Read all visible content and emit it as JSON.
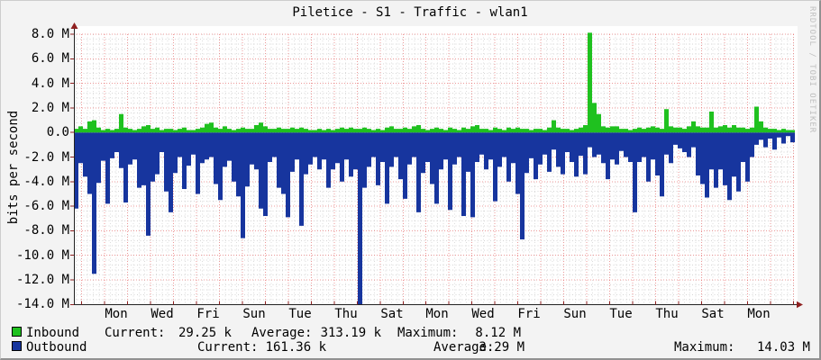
{
  "title": "Piletice - S1 - Traffic - wlan1",
  "y_axis_label": "bits per second",
  "watermark": "RRDTOOL / TOBI OETIKER",
  "colors": {
    "inbound": "#1FC11F",
    "outbound": "#17359E",
    "grid_major": "#E05555",
    "grid_minor": "#B4B4B4",
    "axis": "#222222",
    "arrow": "#8F2020",
    "canvas": "#FFFFFF",
    "frame_bg": "#F3F3F3",
    "watermark_color": "#BFBFBF",
    "text": "#000000"
  },
  "legend": {
    "inbound": {
      "label": "Inbound",
      "current_label": "Current:",
      "current": "29.25 k",
      "average_label": "Average:",
      "average": "313.19 k",
      "maximum_label": "Maximum:",
      "maximum": "8.12 M"
    },
    "outbound": {
      "label": "Outbound",
      "current_label": "Current:",
      "current": "161.36 k",
      "average_label": "Average:",
      "average": "3.29 M",
      "maximum_label": "Maximum:",
      "maximum": "14.03 M"
    }
  },
  "chart_data": {
    "type": "area",
    "title": "Piletice - S1 - Traffic - wlan1",
    "xlabel": "",
    "ylabel": "bits per second",
    "unit": "M = megabits per second; outbound traffic plotted as negative",
    "ylim_m": [
      -14,
      8
    ],
    "y_ticks_m": [
      8,
      6,
      4,
      2,
      0,
      -2,
      -4,
      -6,
      -8,
      -10,
      -12,
      -14
    ],
    "y_tick_labels": [
      "8.0 M",
      "6.0 M",
      "4.0 M",
      "2.0 M",
      "0.0",
      "-2.0 M",
      "-4.0 M",
      "-6.0 M",
      "-8.0 M",
      "-10.0 M",
      "-12.0 M",
      "-14.0 M"
    ],
    "x_tick_labels": [
      "Mon",
      "Wed",
      "Fri",
      "Sun",
      "Tue",
      "Thu",
      "Sat",
      "Mon",
      "Wed",
      "Fri",
      "Sun",
      "Tue",
      "Thu",
      "Sat",
      "Mon"
    ],
    "x_axis_note": "approx. 31 days of data, day labels every 2 days",
    "grid": true,
    "legend_position": "bottom-left",
    "samples_per_series": 160,
    "series": [
      {
        "name": "Inbound",
        "direction": "positive",
        "color": "#1FC11F",
        "values_m": [
          0.3,
          0.5,
          0.3,
          0.9,
          1.0,
          0.4,
          0.2,
          0.3,
          0.2,
          0.3,
          1.5,
          0.4,
          0.3,
          0.2,
          0.3,
          0.5,
          0.6,
          0.3,
          0.4,
          0.2,
          0.3,
          0.3,
          0.2,
          0.3,
          0.4,
          0.2,
          0.2,
          0.3,
          0.4,
          0.7,
          0.8,
          0.4,
          0.3,
          0.5,
          0.3,
          0.2,
          0.3,
          0.4,
          0.3,
          0.3,
          0.6,
          0.8,
          0.5,
          0.3,
          0.3,
          0.4,
          0.3,
          0.3,
          0.4,
          0.3,
          0.4,
          0.3,
          0.2,
          0.2,
          0.3,
          0.2,
          0.3,
          0.2,
          0.3,
          0.4,
          0.3,
          0.4,
          0.3,
          0.3,
          0.4,
          0.3,
          0.2,
          0.3,
          0.2,
          0.4,
          0.5,
          0.3,
          0.3,
          0.4,
          0.3,
          0.5,
          0.6,
          0.3,
          0.2,
          0.3,
          0.4,
          0.3,
          0.2,
          0.4,
          0.3,
          0.2,
          0.4,
          0.3,
          0.5,
          0.6,
          0.3,
          0.3,
          0.2,
          0.4,
          0.3,
          0.2,
          0.4,
          0.3,
          0.4,
          0.3,
          0.3,
          0.2,
          0.3,
          0.3,
          0.2,
          0.4,
          1.0,
          0.4,
          0.3,
          0.3,
          0.2,
          0.3,
          0.4,
          0.6,
          8.12,
          2.4,
          1.5,
          0.5,
          0.4,
          0.5,
          0.5,
          0.3,
          0.3,
          0.2,
          0.3,
          0.4,
          0.3,
          0.4,
          0.5,
          0.4,
          0.3,
          1.9,
          0.5,
          0.4,
          0.4,
          0.3,
          0.5,
          0.9,
          0.5,
          0.4,
          0.4,
          1.7,
          0.4,
          0.5,
          0.6,
          0.4,
          0.6,
          0.4,
          0.4,
          0.3,
          0.4,
          2.1,
          0.9,
          0.4,
          0.3,
          0.3,
          0.2,
          0.3,
          0.2,
          0.2
        ]
      },
      {
        "name": "Outbound",
        "direction": "negative",
        "color": "#17359E",
        "values_m": [
          -6.2,
          -2.5,
          -3.6,
          -5.0,
          -11.5,
          -4.1,
          -2.3,
          -5.8,
          -2.1,
          -1.6,
          -2.9,
          -5.7,
          -2.6,
          -2.2,
          -4.5,
          -4.3,
          -8.4,
          -4.0,
          -3.4,
          -1.6,
          -4.8,
          -6.5,
          -3.3,
          -2.0,
          -4.6,
          -2.7,
          -1.8,
          -5.0,
          -2.5,
          -2.2,
          -2.0,
          -4.2,
          -5.5,
          -2.8,
          -2.3,
          -4.0,
          -5.2,
          -8.6,
          -4.4,
          -2.6,
          -3.0,
          -6.2,
          -6.8,
          -2.4,
          -2.0,
          -4.5,
          -5.0,
          -6.9,
          -3.2,
          -2.2,
          -7.6,
          -3.4,
          -2.6,
          -2.0,
          -3.0,
          -2.2,
          -4.5,
          -3.0,
          -2.5,
          -4.0,
          -2.2,
          -3.6,
          -3.0,
          -14.03,
          -4.5,
          -2.8,
          -2.0,
          -4.3,
          -2.4,
          -5.8,
          -2.8,
          -2.0,
          -3.8,
          -5.4,
          -2.6,
          -2.0,
          -6.5,
          -3.3,
          -2.4,
          -4.2,
          -5.8,
          -3.0,
          -2.2,
          -6.3,
          -2.6,
          -2.0,
          -6.8,
          -3.2,
          -6.9,
          -2.4,
          -1.8,
          -3.0,
          -2.2,
          -5.6,
          -2.8,
          -2.0,
          -4.0,
          -2.5,
          -5.0,
          -8.7,
          -3.3,
          -2.1,
          -3.8,
          -2.6,
          -1.8,
          -3.2,
          -1.4,
          -2.8,
          -3.4,
          -1.6,
          -2.4,
          -3.6,
          -1.9,
          -3.4,
          -1.2,
          -2.0,
          -1.8,
          -2.5,
          -3.8,
          -2.2,
          -2.6,
          -1.5,
          -2.0,
          -2.4,
          -6.5,
          -2.4,
          -2.0,
          -4.0,
          -2.2,
          -3.5,
          -5.2,
          -1.8,
          -2.5,
          -1.0,
          -1.3,
          -1.6,
          -2.0,
          -1.2,
          -3.5,
          -4.2,
          -5.3,
          -3.0,
          -4.5,
          -3.0,
          -4.3,
          -5.5,
          -3.6,
          -4.8,
          -2.4,
          -4.0,
          -2.0,
          -1.0,
          -0.6,
          -1.2,
          -0.5,
          -1.4,
          -0.4,
          -0.9,
          -0.3,
          -0.8
        ]
      }
    ]
  }
}
